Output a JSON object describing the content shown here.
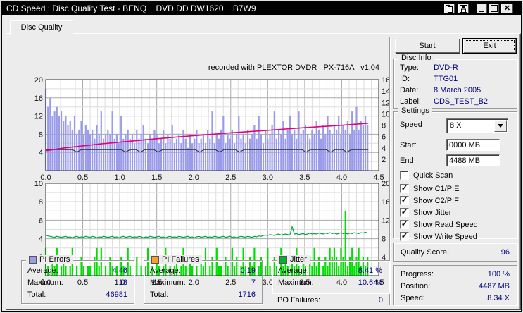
{
  "window": {
    "title": "CD Speed : Disc Quality Test - BENQ    DVD DD DW1620    B7W9"
  },
  "titlebar_buttons": {
    "copy": "copy",
    "save": "save",
    "minimize": "minimize",
    "maximize": "maximize",
    "close": "close"
  },
  "tab": {
    "label": "Disc Quality"
  },
  "chart_header": "recorded with PLEXTOR DVDR   PX-716A   v1.04",
  "chart_data": [
    {
      "name": "pi-errors-speed-chart",
      "type": "bar",
      "x": {
        "max": 4.5,
        "minor": 0.1,
        "major": 0.5,
        "ticks": [
          0,
          0.5,
          1,
          1.5,
          2,
          2.5,
          3,
          3.5,
          4,
          4.5
        ],
        "unit": "GB"
      },
      "yl": {
        "max": 20,
        "minor": 2,
        "major": 4,
        "ticks": [
          4,
          8,
          12,
          16,
          20
        ]
      },
      "yr": {
        "max": 16,
        "ticks": [
          2,
          4,
          6,
          8,
          10,
          12,
          14,
          16
        ]
      },
      "series": [
        {
          "name": "pi-errors",
          "type": "bars",
          "axis": "l",
          "color": "#9b9bec",
          "x_step": 0.03,
          "values": [
            18,
            14,
            16,
            12,
            13,
            14,
            12,
            13,
            11,
            12,
            10,
            11,
            9,
            12,
            8,
            9,
            11,
            8,
            10,
            9,
            8,
            9,
            7,
            10,
            8,
            13,
            7,
            8,
            9,
            8,
            13,
            7,
            8,
            6,
            12,
            7,
            8,
            9,
            7,
            8,
            6,
            9,
            7,
            8,
            10,
            7,
            6,
            8,
            7,
            9,
            8,
            6,
            7,
            9,
            6,
            8,
            7,
            10,
            6,
            7,
            8,
            6,
            9,
            7,
            5,
            8,
            6,
            7,
            9,
            6,
            7,
            8,
            6,
            9,
            7,
            13,
            6,
            8,
            7,
            9,
            12,
            6,
            8,
            7,
            9,
            6,
            8,
            12,
            7,
            8,
            6,
            9,
            7,
            8,
            10,
            7,
            12,
            8,
            6,
            9,
            7,
            8,
            10,
            13,
            7,
            9,
            8,
            11,
            7,
            9,
            12,
            8,
            9,
            7,
            13,
            8,
            9,
            10,
            8,
            7,
            9,
            8,
            11,
            9,
            7,
            10,
            8,
            12,
            9,
            8,
            10,
            9,
            12,
            8,
            10,
            9,
            11,
            8,
            13,
            9,
            14,
            9,
            11,
            10,
            12,
            10
          ]
        },
        {
          "name": "write-speed",
          "type": "hline-dips",
          "axis": "r",
          "color": "#2f2f2f",
          "level": 3.7,
          "dip": 3.25,
          "x_end": 4.36,
          "dips": [
            0.42,
            1.08,
            1.28,
            1.52,
            2.08,
            2.35,
            2.62,
            3.52,
            3.85,
            4.07
          ]
        },
        {
          "name": "read-speed",
          "type": "line",
          "axis": "r",
          "color": "#e6007e",
          "width": 1.6,
          "points": [
            [
              0,
              3.5
            ],
            [
              0.25,
              4.0
            ],
            [
              0.5,
              4.35
            ],
            [
              0.75,
              4.7
            ],
            [
              1,
              5.0
            ],
            [
              1.5,
              5.6
            ],
            [
              2,
              6.15
            ],
            [
              2.5,
              6.65
            ],
            [
              3,
              7.1
            ],
            [
              3.5,
              7.55
            ],
            [
              4,
              7.98
            ],
            [
              4.36,
              8.34
            ]
          ]
        }
      ]
    },
    {
      "name": "pi-failures-jitter-chart",
      "type": "bar",
      "x": {
        "max": 4.5,
        "minor": 0.1,
        "major": 0.5,
        "ticks": [
          0,
          0.5,
          1,
          1.5,
          2,
          2.5,
          3,
          3.5,
          4,
          4.5
        ],
        "unit": "GB"
      },
      "yl": {
        "max": 10,
        "minor": 1,
        "major": 2,
        "ticks": [
          2,
          4,
          6,
          8,
          10
        ]
      },
      "yr": {
        "max": 20,
        "ticks": [
          4,
          8,
          12,
          16,
          20
        ]
      },
      "series": [
        {
          "name": "pi-failures",
          "type": "bars",
          "axis": "l",
          "color": "#00e000",
          "x_step": 0.03,
          "values": [
            3,
            1,
            0,
            2,
            1,
            3,
            0,
            1,
            2,
            1,
            0,
            1,
            3,
            0,
            1,
            0,
            2,
            1,
            0,
            1,
            1,
            0,
            2,
            3,
            1,
            3,
            0,
            1,
            0,
            2,
            1,
            0,
            1,
            0,
            2,
            1,
            0,
            3,
            1,
            0,
            1,
            2,
            0,
            1,
            0,
            1,
            3,
            0,
            1,
            0,
            2,
            1,
            0,
            1,
            3,
            0,
            1,
            0,
            1,
            2,
            0,
            1,
            3,
            1,
            0,
            2,
            1,
            0,
            1,
            0,
            2,
            1,
            3,
            0,
            1,
            2,
            0,
            3,
            1,
            1,
            0,
            2,
            1,
            0,
            3,
            1,
            2,
            0,
            1,
            3,
            1,
            0,
            2,
            1,
            3,
            0,
            1,
            2,
            0,
            1,
            3,
            1,
            0,
            2,
            1,
            0,
            3,
            1,
            2,
            1,
            0,
            2,
            1,
            3,
            1,
            0,
            2,
            1,
            0,
            2,
            1,
            3,
            1,
            2,
            0,
            1,
            2,
            1,
            3,
            2,
            3,
            2,
            1,
            3,
            2,
            7,
            1,
            2,
            3,
            1,
            2,
            3,
            1,
            2,
            1,
            2
          ]
        },
        {
          "name": "jitter",
          "type": "line-indexed",
          "axis": "r",
          "color": "#00a33e",
          "width": 1.2,
          "x_step": 0.03,
          "values": [
            8.8,
            8.6,
            8.5,
            8.4,
            8.3,
            8.5,
            8.4,
            8.3,
            8.4,
            8.5,
            8.3,
            8.4,
            8.2,
            8.4,
            8.5,
            8.3,
            8.4,
            8.3,
            8.5,
            8.4,
            8.3,
            8.5,
            8.4,
            8.2,
            8.4,
            8.3,
            8.5,
            8.4,
            8.3,
            8.4,
            8.5,
            8.3,
            8.4,
            8.2,
            8.4,
            8.5,
            8.3,
            8.4,
            8.5,
            8.3,
            8.4,
            8.3,
            8.5,
            8.4,
            8.2,
            8.4,
            8.3,
            8.5,
            8.4,
            8.3,
            8.4,
            8.5,
            8.3,
            8.4,
            8.2,
            8.4,
            8.5,
            8.3,
            8.4,
            8.3,
            8.5,
            8.4,
            8.3,
            8.4,
            8.5,
            8.3,
            8.4,
            8.2,
            8.4,
            8.5,
            8.3,
            8.4,
            8.5,
            8.3,
            8.4,
            8.3,
            8.5,
            8.4,
            8.3,
            8.4,
            8.5,
            8.3,
            8.4,
            8.5,
            8.3,
            8.4,
            8.2,
            8.4,
            8.5,
            8.4,
            8.3,
            8.5,
            8.4,
            8.3,
            8.5,
            8.4,
            8.6,
            8.5,
            8.7,
            8.8,
            8.7,
            8.9,
            8.8,
            8.7,
            8.9,
            9.0,
            8.8,
            8.9,
            9.0,
            8.9,
            8.8,
            10.6,
            9.0,
            9.1,
            8.9,
            9.0,
            9.1,
            8.9,
            9.0,
            9.2,
            9.0,
            9.1,
            9.0,
            9.2,
            9.1,
            9.0,
            9.2,
            9.1,
            9.3,
            9.1,
            9.2,
            9.0,
            9.1,
            9.3,
            9.1,
            9.2,
            9.0,
            9.2,
            9.1,
            9.3,
            9.2,
            9.1,
            9.3,
            9.2,
            9.4,
            9.2
          ]
        }
      ]
    }
  ],
  "legend": {
    "pi_errors": {
      "title": "PI Errors",
      "swatch": "#9b9bec",
      "rows": [
        [
          "Average:",
          "4.46"
        ],
        [
          "Maximum:",
          "18"
        ],
        [
          "Total:",
          "46981"
        ]
      ]
    },
    "pi_failures": {
      "title": "PI Failures",
      "swatch": "#ff9c2c",
      "rows": [
        [
          "Average:",
          "0.19"
        ],
        [
          "Maximum:",
          "7"
        ],
        [
          "Total:",
          "1716"
        ]
      ]
    },
    "jitter": {
      "title": "Jitter",
      "swatch": "#00b22d",
      "rows": [
        [
          "Average:",
          "8.41 %"
        ],
        [
          "Maximum:",
          "10.6 %"
        ]
      ]
    },
    "po_failures": {
      "label": "PO Failures:",
      "value": "0"
    }
  },
  "controls": {
    "start_u": "S",
    "start_rest": "tart",
    "exit_u": "E",
    "exit_rest": "xit"
  },
  "disc_info": {
    "title": "Disc Info",
    "rows": [
      [
        "Type:",
        "DVD-R"
      ],
      [
        "ID:",
        "TTG01"
      ],
      [
        "Date:",
        "8 March 2005"
      ],
      [
        "Label:",
        "CDS_TEST_B2"
      ]
    ]
  },
  "settings": {
    "title": "Settings",
    "speed_label": "Speed",
    "speed_value": "8 X",
    "start_label": "Start",
    "start_value": "0000 MB",
    "end_label": "End",
    "end_value": "4488 MB",
    "checkboxes": [
      {
        "label": "Quick Scan",
        "checked": false
      },
      {
        "label": "Show C1/PIE",
        "checked": true
      },
      {
        "label": "Show C2/PIF",
        "checked": true
      },
      {
        "label": "Show Jitter",
        "checked": true
      },
      {
        "label": "Show Read Speed",
        "checked": true
      },
      {
        "label": "Show Write Speed",
        "checked": true
      }
    ]
  },
  "quality_score": {
    "label": "Quality Score:",
    "value": "96"
  },
  "status": {
    "rows": [
      [
        "Progress:",
        "100 %"
      ],
      [
        "Position:",
        "4487 MB"
      ],
      [
        "Speed:",
        "8.34 X"
      ]
    ]
  },
  "colors": {
    "value_text": "#00007f",
    "titlebar": "#000000",
    "dialog": "#ececec"
  }
}
